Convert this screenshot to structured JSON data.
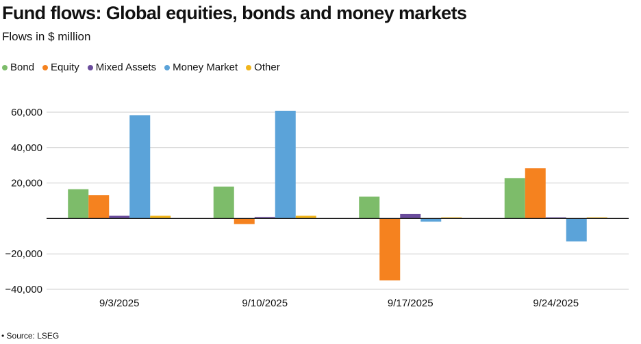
{
  "title": "Fund flows: Global equities, bonds and money markets",
  "subtitle": "Flows in $ million",
  "source": "• Source: LSEG",
  "chart_data": {
    "type": "bar",
    "categories": [
      "9/3/2025",
      "9/10/2025",
      "9/17/2025",
      "9/24/2025"
    ],
    "series": [
      {
        "name": "Bond",
        "color": "#7dbc6a",
        "values": [
          16500,
          18000,
          12300,
          22800
        ]
      },
      {
        "name": "Equity",
        "color": "#f5821f",
        "values": [
          13200,
          -3200,
          -35000,
          28300
        ]
      },
      {
        "name": "Mixed Assets",
        "color": "#6a4c9c",
        "values": [
          1500,
          800,
          2500,
          500
        ]
      },
      {
        "name": "Money Market",
        "color": "#5ba3d9",
        "values": [
          58300,
          60800,
          -1800,
          -13000
        ]
      },
      {
        "name": "Other",
        "color": "#f1b51c",
        "values": [
          1500,
          1500,
          500,
          500
        ]
      }
    ],
    "yticks": [
      -40000,
      -20000,
      20000,
      40000,
      60000
    ],
    "ytick_labels": [
      "−40,000",
      "−20,000",
      "20,000",
      "40,000",
      "60,000"
    ],
    "ylim": [
      -40000,
      60000
    ],
    "grid": true,
    "legend": "top-left"
  }
}
